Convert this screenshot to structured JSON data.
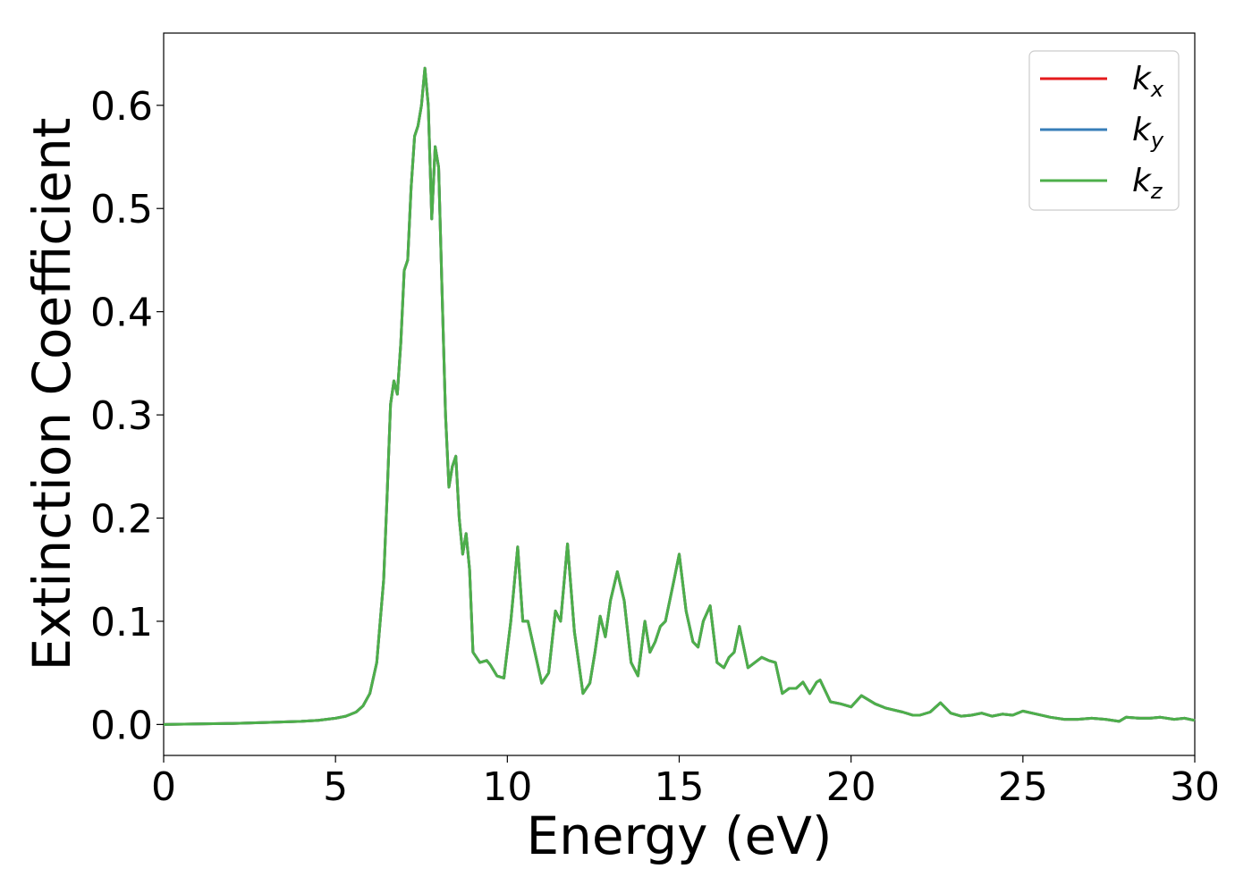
{
  "chart_data": {
    "type": "line",
    "title": "",
    "xlabel": "Energy (eV)",
    "ylabel": "Extinction Coefficient",
    "xlim": [
      0,
      30
    ],
    "ylim": [
      -0.03,
      0.67
    ],
    "grid": false,
    "legend_position": "top-right",
    "x_ticks": [
      0,
      5,
      10,
      15,
      20,
      25,
      30
    ],
    "x_tick_labels": [
      "0",
      "5",
      "10",
      "15",
      "20",
      "25",
      "30"
    ],
    "y_ticks": [
      0.0,
      0.1,
      0.2,
      0.3,
      0.4,
      0.5,
      0.6
    ],
    "y_tick_labels": [
      "0.0",
      "0.1",
      "0.2",
      "0.3",
      "0.4",
      "0.5",
      "0.6"
    ],
    "series": [
      {
        "name": "k_x",
        "legend_base": "k",
        "legend_sub": "x",
        "color": "#e41a1c",
        "x": [
          0,
          1,
          2,
          3,
          4,
          4.5,
          5,
          5.3,
          5.6,
          5.8,
          6.0,
          6.2,
          6.4,
          6.5,
          6.6,
          6.7,
          6.8,
          6.9,
          7.0,
          7.1,
          7.2,
          7.3,
          7.4,
          7.5,
          7.6,
          7.7,
          7.8,
          7.9,
          8.0,
          8.1,
          8.2,
          8.3,
          8.4,
          8.5,
          8.6,
          8.7,
          8.8,
          8.9,
          9.0,
          9.2,
          9.4,
          9.5,
          9.7,
          9.9,
          10.1,
          10.3,
          10.45,
          10.6,
          10.8,
          11.0,
          11.2,
          11.4,
          11.55,
          11.75,
          11.95,
          12.2,
          12.4,
          12.55,
          12.7,
          12.85,
          13.0,
          13.2,
          13.4,
          13.6,
          13.8,
          14.0,
          14.15,
          14.3,
          14.45,
          14.6,
          14.85,
          15.0,
          15.2,
          15.4,
          15.55,
          15.7,
          15.9,
          16.1,
          16.3,
          16.45,
          16.6,
          16.75,
          17.0,
          17.2,
          17.4,
          17.6,
          17.8,
          18.0,
          18.2,
          18.4,
          18.6,
          18.8,
          19.0,
          19.1,
          19.4,
          19.7,
          20.0,
          20.3,
          20.7,
          21.0,
          21.5,
          21.8,
          22.0,
          22.3,
          22.6,
          22.9,
          23.2,
          23.5,
          23.8,
          24.1,
          24.4,
          24.7,
          25.0,
          25.4,
          25.8,
          26.2,
          26.6,
          27.0,
          27.4,
          27.8,
          28.0,
          28.4,
          28.7,
          29.0,
          29.4,
          29.7,
          30.0
        ],
        "y": [
          0.0,
          0.0005,
          0.001,
          0.002,
          0.003,
          0.004,
          0.006,
          0.008,
          0.012,
          0.018,
          0.03,
          0.06,
          0.14,
          0.22,
          0.31,
          0.333,
          0.32,
          0.37,
          0.44,
          0.45,
          0.52,
          0.57,
          0.58,
          0.6,
          0.636,
          0.6,
          0.49,
          0.56,
          0.54,
          0.42,
          0.3,
          0.23,
          0.25,
          0.26,
          0.2,
          0.165,
          0.185,
          0.15,
          0.07,
          0.06,
          0.062,
          0.058,
          0.047,
          0.045,
          0.1,
          0.172,
          0.1,
          0.1,
          0.07,
          0.04,
          0.05,
          0.11,
          0.1,
          0.175,
          0.09,
          0.03,
          0.04,
          0.07,
          0.105,
          0.085,
          0.12,
          0.148,
          0.12,
          0.06,
          0.047,
          0.1,
          0.07,
          0.08,
          0.095,
          0.1,
          0.14,
          0.165,
          0.11,
          0.08,
          0.075,
          0.1,
          0.115,
          0.06,
          0.055,
          0.065,
          0.07,
          0.095,
          0.055,
          0.06,
          0.065,
          0.062,
          0.06,
          0.03,
          0.035,
          0.035,
          0.041,
          0.03,
          0.041,
          0.043,
          0.022,
          0.02,
          0.017,
          0.028,
          0.02,
          0.016,
          0.012,
          0.009,
          0.009,
          0.012,
          0.021,
          0.011,
          0.008,
          0.009,
          0.011,
          0.008,
          0.01,
          0.009,
          0.013,
          0.01,
          0.007,
          0.005,
          0.005,
          0.006,
          0.005,
          0.003,
          0.007,
          0.006,
          0.006,
          0.007,
          0.005,
          0.006,
          0.004
        ]
      },
      {
        "name": "k_y",
        "legend_base": "k",
        "legend_sub": "y",
        "color": "#377eb8",
        "same_as": "k_x"
      },
      {
        "name": "k_z",
        "legend_base": "k",
        "legend_sub": "z",
        "color": "#4daf4a",
        "same_as": "k_x"
      }
    ]
  }
}
